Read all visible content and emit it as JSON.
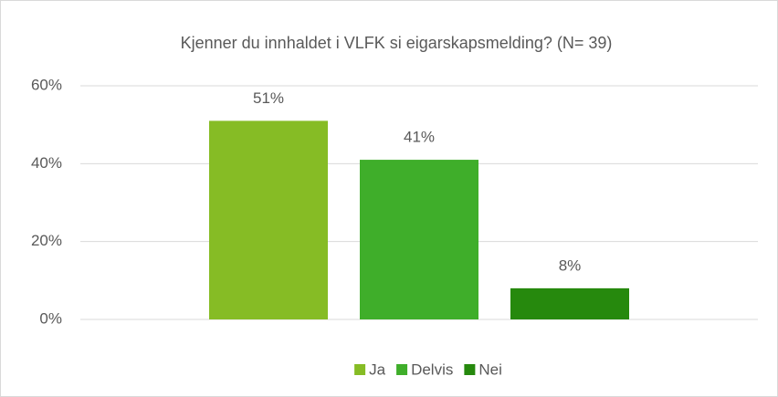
{
  "chart_data": {
    "type": "bar",
    "title": "Kjenner du innhaldet i VLFK si eigarskapsmelding?  (N= 39)",
    "categories": [
      null
    ],
    "series": [
      {
        "name": "Ja",
        "color": "#86bc25",
        "values": [
          51
        ],
        "value_labels": [
          "51%"
        ]
      },
      {
        "name": "Delvis",
        "color": "#3fae2a",
        "values": [
          41
        ],
        "value_labels": [
          "41%"
        ]
      },
      {
        "name": "Nei",
        "color": "#26890d",
        "values": [
          8
        ],
        "value_labels": [
          "8%"
        ]
      }
    ],
    "ylim": [
      0,
      60
    ],
    "yticks": [
      {
        "value": 0,
        "label": "0%"
      },
      {
        "value": 20,
        "label": "20%"
      },
      {
        "value": 40,
        "label": "40%"
      },
      {
        "value": 60,
        "label": "60%"
      }
    ],
    "grid": true,
    "legend": "bottom"
  }
}
